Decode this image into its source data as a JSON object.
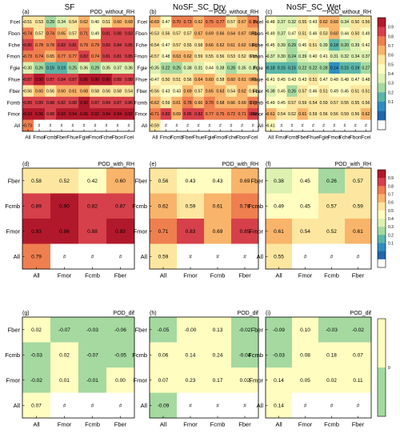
{
  "column_titles": [
    "SF",
    "NoSF_SC_Dry",
    "NoSF_SC_Wet"
  ],
  "colorbar_top": {
    "labels": [
      "0.9",
      "0.8",
      "0.7",
      "0.6",
      "0.5",
      "0.4",
      "0.3",
      "0.2",
      "0.1"
    ],
    "colors": [
      "#b2182b",
      "#d6404a",
      "#ef7f4f",
      "#f9b46b",
      "#fde7a0",
      "#fffec0",
      "#ddf1b1",
      "#a5d9a0",
      "#5bb5a8",
      "#2f8ec0",
      "#2166ac",
      "#ffffff"
    ]
  },
  "colorbar_bottom": {
    "labels": [
      "0"
    ],
    "colors": [
      "#fffec0",
      "#a5d9a0"
    ]
  },
  "chart_data": [
    {
      "type": "heatmap",
      "panel": "(a)",
      "title": "POD_without_RH",
      "rows": [
        "Fcel",
        "Fbon",
        "Fche",
        "Fmon",
        "Fgie",
        "Fhue",
        "Fber",
        "Fcmb",
        "Fmor",
        "All"
      ],
      "cols": [
        "All",
        "Fmor",
        "Fcmb",
        "Fber",
        "Fhue",
        "Fgie",
        "Fmon",
        "Fche",
        "Fbon",
        "Fcel"
      ],
      "values": [
        [
          "0.51",
          "0.53",
          "0.29",
          "0.34",
          "0.54",
          "0.62",
          "0.40",
          "0.51",
          "0.60",
          "0.68"
        ],
        [
          "0.74",
          "0.57",
          "0.74",
          "0.65",
          "0.57",
          "0.71",
          "0.49",
          "0.81",
          "0.88",
          "0.83"
        ],
        [
          "0.80",
          "0.78",
          "0.78",
          "0.83",
          "0.81",
          "0.79",
          "0.79",
          "0.83",
          "0.84",
          "0.85"
        ],
        [
          "0.73",
          "0.74",
          "0.65",
          "0.77",
          "0.77",
          "0.82",
          "0.74",
          "0.81",
          "0.81",
          "0.85"
        ],
        [
          "0.30",
          "0.26",
          "0.15",
          "0.19",
          "0.25",
          "0.36",
          "0.29",
          "0.35",
          "0.37",
          "0.36"
        ],
        [
          "0.87",
          "0.90",
          "0.87",
          "0.84",
          "0.87",
          "0.96",
          "0.90",
          "0.90",
          "0.89",
          "0.88"
        ],
        [
          "0.56",
          "0.60",
          "0.56",
          "0.60",
          "0.61",
          "0.68",
          "0.58",
          "0.56",
          "0.58",
          "0.54"
        ],
        [
          "0.89",
          "0.89",
          "0.88",
          "0.82",
          "0.88",
          "0.90",
          "0.87",
          "0.84",
          "0.87",
          "0.86"
        ],
        [
          "0.93",
          "0.96",
          "0.88",
          "0.93",
          "0.94",
          "0.96",
          "0.92",
          "0.94",
          "0.94",
          "0.92"
        ],
        [
          "0.73",
          "#",
          "#",
          "#",
          "#",
          "#",
          "#",
          "#",
          "#",
          "#"
        ]
      ]
    },
    {
      "type": "heatmap",
      "panel": "(b)",
      "title": "POD_without_RH",
      "rows": [
        "Fcel",
        "Fbon",
        "Fche",
        "Fmon",
        "Fgie",
        "Fhue",
        "Fber",
        "Fcmb",
        "Fmor",
        "All"
      ],
      "cols": [
        "All",
        "Fmor",
        "Fcmb",
        "Fber",
        "Fhue",
        "Fgie",
        "Fmon",
        "Fche",
        "Fbon",
        "Fcel"
      ],
      "values": [
        [
          "0.69",
          "0.47",
          "0.70",
          "0.73",
          "0.62",
          "0.75",
          "0.77",
          "0.57",
          "0.67",
          "0.75"
        ],
        [
          "0.53",
          "0.56",
          "0.57",
          "0.57",
          "0.67",
          "0.69",
          "0.66",
          "0.64",
          "0.67",
          "0.61"
        ],
        [
          "0.54",
          "0.47",
          "0.57",
          "0.55",
          "0.58",
          "0.66",
          "0.62",
          "0.61",
          "0.62",
          "0.60"
        ],
        [
          "0.57",
          "0.48",
          "0.63",
          "0.62",
          "0.59",
          "0.55",
          "0.56",
          "0.53",
          "0.52",
          "0.53"
        ],
        [
          "0.35",
          "0.22",
          "0.25",
          "0.38",
          "0.31",
          "0.44",
          "0.38",
          "0.28",
          "0.35",
          "0.39"
        ],
        [
          "0.47",
          "0.50",
          "0.51",
          "0.56",
          "0.64",
          "0.60",
          "0.58",
          "0.60",
          "0.61",
          "0.61"
        ],
        [
          "0.56",
          "0.43",
          "0.43",
          "0.69",
          "0.57",
          "0.65",
          "0.63",
          "0.54",
          "0.62",
          "0.54"
        ],
        [
          "0.62",
          "0.59",
          "0.61",
          "0.78",
          "0.66",
          "0.70",
          "0.68",
          "0.66",
          "0.69",
          "0.72"
        ],
        [
          "0.71",
          "0.83",
          "0.69",
          "0.85",
          "0.82",
          "0.77",
          "0.75",
          "0.72",
          "0.71",
          "0.82"
        ],
        [
          "0.59",
          "#",
          "#",
          "#",
          "#",
          "#",
          "#",
          "#",
          "#",
          "#"
        ]
      ]
    },
    {
      "type": "heatmap",
      "panel": "(c)",
      "title": "POD_without_RH",
      "rows": [
        "Fcel",
        "Fbon",
        "Fche",
        "Fmon",
        "Fgie",
        "Fhue",
        "Fber",
        "Fcmb",
        "Fmor",
        "All"
      ],
      "cols": [
        "All",
        "Fmor",
        "Fcmb",
        "Fber",
        "Fhue",
        "Fgie",
        "Fmon",
        "Fche",
        "Fbon",
        "Fcel"
      ],
      "values": [
        [
          "0.48",
          "0.37",
          "0.32",
          "0.55",
          "0.43",
          "0.62",
          "0.60",
          "0.34",
          "0.50",
          "0.56"
        ],
        [
          "0.49",
          "0.37",
          "0.47",
          "0.51",
          "0.46",
          "0.53",
          "0.60",
          "0.44",
          "0.50",
          "0.49"
        ],
        [
          "0.45",
          "0.39",
          "0.29",
          "0.45",
          "0.51",
          "0.39",
          "0.18",
          "0.20",
          "0.39",
          "0.42"
        ],
        [
          "0.37",
          "0.30",
          "0.24",
          "0.39",
          "0.40",
          "0.41",
          "0.31",
          "0.32",
          "0.34",
          "0.37"
        ],
        [
          "0.18",
          "0.15",
          "0.15",
          "0.22",
          "0.22",
          "0.28",
          "0.14",
          "0.15",
          "0.19",
          "0.27"
        ],
        [
          "0.41",
          "0.45",
          "0.43",
          "0.43",
          "0.51",
          "0.47",
          "0.48",
          "0.48",
          "0.47",
          "0.48"
        ],
        [
          "0.38",
          "0.45",
          "0.26",
          "0.57",
          "0.46",
          "0.51",
          "0.49",
          "0.45",
          "0.51",
          "0.51"
        ],
        [
          "0.49",
          "0.45",
          "0.57",
          "0.59",
          "0.54",
          "0.59",
          "0.57",
          "0.55",
          "0.55",
          "0.56"
        ],
        [
          "0.61",
          "0.54",
          "0.52",
          "0.61",
          "0.59",
          "0.56",
          "0.56",
          "0.59",
          "0.56",
          "0.62"
        ],
        [
          "0.41",
          "#",
          "#",
          "#",
          "#",
          "#",
          "#",
          "#",
          "#",
          "#"
        ]
      ]
    },
    {
      "type": "heatmap",
      "panel": "(d)",
      "title": "POD_with_RH",
      "rows": [
        "Fber",
        "Fcmb",
        "Fmor",
        "All"
      ],
      "cols": [
        "All",
        "Fmor",
        "Fcmb",
        "Fber"
      ],
      "values": [
        [
          "0.58",
          "0.52",
          "0.42",
          "0.60"
        ],
        [
          "0.89",
          "0.90",
          "0.82",
          "0.87"
        ],
        [
          "0.93",
          "0.96",
          "0.88",
          "0.93"
        ],
        [
          "0.79",
          "#",
          "#",
          "#"
        ]
      ]
    },
    {
      "type": "heatmap",
      "panel": "(e)",
      "title": "POD_with_RH",
      "rows": [
        "Fber",
        "Fcmb",
        "Fmor",
        "All"
      ],
      "cols": [
        "All",
        "Fmor",
        "Fcmb",
        "Fber"
      ],
      "values": [
        [
          "0.56",
          "0.43",
          "0.43",
          "0.69"
        ],
        [
          "0.62",
          "0.59",
          "0.61",
          "0.78"
        ],
        [
          "0.71",
          "0.83",
          "0.69",
          "0.85"
        ],
        [
          "0.59",
          "#",
          "#",
          "#"
        ]
      ]
    },
    {
      "type": "heatmap",
      "panel": "(f)",
      "title": "POD_with_RH",
      "rows": [
        "Fber",
        "Fcmb",
        "Fmor",
        "All"
      ],
      "cols": [
        "All",
        "Fmor",
        "Fcmb",
        "Fber"
      ],
      "values": [
        [
          "0.38",
          "0.45",
          "0.26",
          "0.57"
        ],
        [
          "0.49",
          "0.45",
          "0.57",
          "0.59"
        ],
        [
          "0.61",
          "0.54",
          "0.52",
          "0.61"
        ],
        [
          "0.55",
          "#",
          "#",
          "#"
        ]
      ]
    },
    {
      "type": "heatmap",
      "panel": "(g)",
      "title": "POD_dif",
      "rows": [
        "Fber",
        "Fcmb",
        "Fmor",
        "All"
      ],
      "cols": [
        "All",
        "Fmor",
        "Fcmb",
        "Fber"
      ],
      "values": [
        [
          "0.02",
          "-0.07",
          "-0.03",
          "-0.06"
        ],
        [
          "-0.03",
          "0.02",
          "-0.07",
          "-0.05"
        ],
        [
          "-0.02",
          "0.01",
          "-0.01",
          "0.00"
        ],
        [
          "0.07",
          "#",
          "#",
          "#"
        ]
      ]
    },
    {
      "type": "heatmap",
      "panel": "(h)",
      "title": "POD_dif",
      "rows": [
        "Fber",
        "Fcmb",
        "Fmor",
        "All"
      ],
      "cols": [
        "All",
        "Fmor",
        "Fcmb",
        "Fber"
      ],
      "values": [
        [
          "-0.05",
          "-0.00",
          "0.13",
          "-0.02"
        ],
        [
          "0.06",
          "0.14",
          "0.24",
          "-0.04"
        ],
        [
          "0.07",
          "0.23",
          "0.17",
          "0.02"
        ],
        [
          "-0.09",
          "#",
          "#",
          "#"
        ]
      ]
    },
    {
      "type": "heatmap",
      "panel": "(i)",
      "title": "POD_dif",
      "rows": [
        "Fber",
        "Fcmb",
        "Fmor",
        "All"
      ],
      "cols": [
        "All",
        "Fmor",
        "Fcmb",
        "Fber"
      ],
      "values": [
        [
          "-0.09",
          "0.10",
          "-0.03",
          "-0.02"
        ],
        [
          "-0.03",
          "0.08",
          "0.18",
          "0.07"
        ],
        [
          "0.14",
          "0.05",
          "0.02",
          "0.11"
        ],
        [
          "0.14",
          "#",
          "#",
          "#"
        ]
      ]
    }
  ]
}
